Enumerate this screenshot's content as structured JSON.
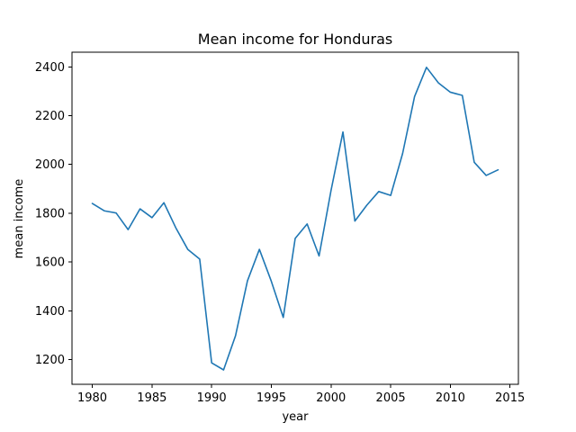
{
  "chart_data": {
    "type": "line",
    "title": "Mean income for Honduras",
    "xlabel": "year",
    "ylabel": "mean income",
    "xlim": [
      1978.3,
      2015.7
    ],
    "ylim": [
      1099,
      2460
    ],
    "x_ticks": [
      1980,
      1985,
      1990,
      1995,
      2000,
      2005,
      2010,
      2015
    ],
    "y_ticks": [
      1200,
      1400,
      1600,
      1800,
      2000,
      2200,
      2400
    ],
    "grid": false,
    "legend": "none",
    "series": [
      {
        "color": "#1f77b4",
        "x": [
          1980,
          1981,
          1982,
          1983,
          1984,
          1985,
          1986,
          1987,
          1988,
          1989,
          1990,
          1991,
          1992,
          1993,
          1994,
          1995,
          1996,
          1997,
          1998,
          1999,
          2000,
          2001,
          2002,
          2003,
          2004,
          2005,
          2006,
          2007,
          2008,
          2009,
          2010,
          2011,
          2012,
          2013,
          2014
        ],
        "y": [
          1840,
          1810,
          1801,
          1733,
          1818,
          1782,
          1843,
          1740,
          1652,
          1612,
          1187,
          1158,
          1298,
          1523,
          1652,
          1521,
          1373,
          1697,
          1756,
          1625,
          1893,
          2133,
          1768,
          1833,
          1889,
          1873,
          2045,
          2278,
          2398,
          2334,
          2296,
          2283,
          2009,
          1955,
          1978
        ]
      }
    ]
  }
}
